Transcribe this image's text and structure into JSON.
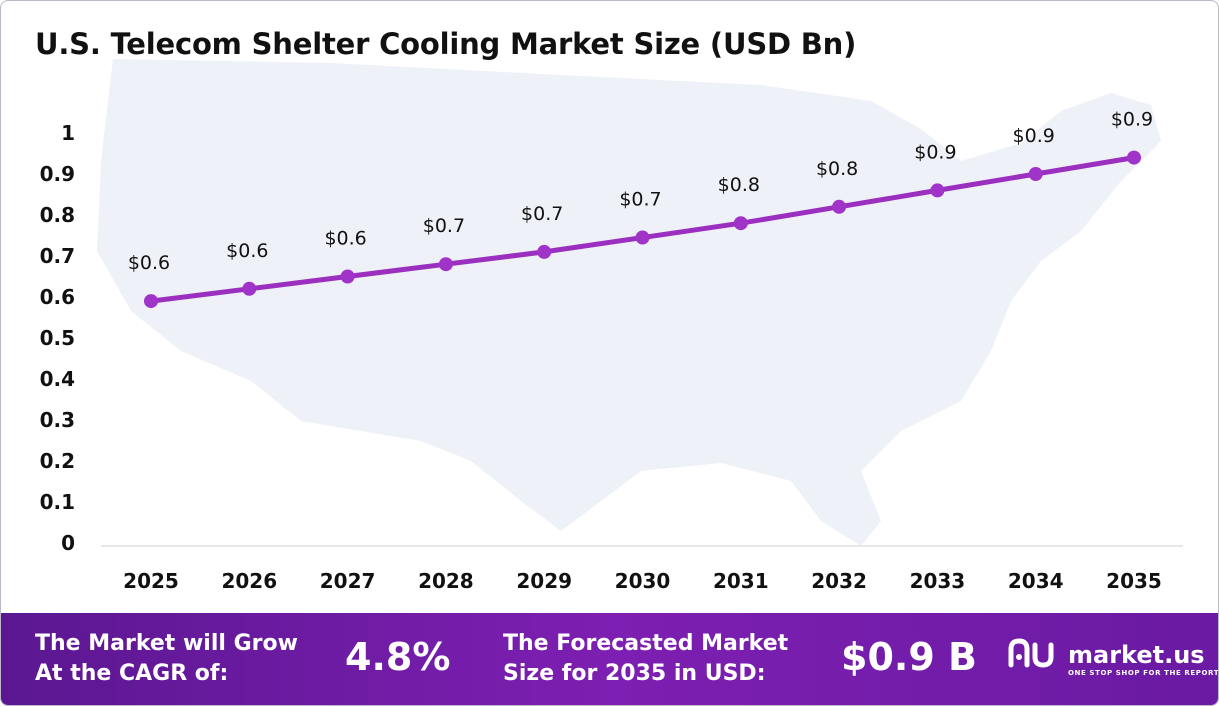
{
  "chart_data": {
    "type": "line",
    "title": "U.S. Telecom Shelter Cooling Market Size (USD Bn)",
    "categories": [
      "2025",
      "2026",
      "2027",
      "2028",
      "2029",
      "2030",
      "2031",
      "2032",
      "2033",
      "2034",
      "2035"
    ],
    "series": [
      {
        "values": [
          0.59,
          0.62,
          0.65,
          0.68,
          0.71,
          0.745,
          0.78,
          0.82,
          0.86,
          0.9,
          0.94
        ],
        "labels": [
          "$0.6",
          "$0.6",
          "$0.6",
          "$0.7",
          "$0.7",
          "$0.7",
          "$0.8",
          "$0.8",
          "$0.9",
          "$0.9",
          "$0.9"
        ]
      }
    ],
    "ylim": [
      0,
      1
    ],
    "yticks": [
      "0",
      "0.1",
      "0.2",
      "0.3",
      "0.4",
      "0.5",
      "0.6",
      "0.7",
      "0.8",
      "0.9",
      "1"
    ],
    "grid": false,
    "line_color": "#9b2fc0",
    "marker_color": "#a033c8"
  },
  "footer": {
    "cagr_label": "The Market will Grow\nAt the CAGR of:",
    "cagr_value": "4.8%",
    "forecast_label": "The Forecasted Market\nSize for 2035 in USD:",
    "forecast_value": "$0.9 B",
    "logo_icon": "market-us-logo-icon",
    "logo_text": "market.us",
    "logo_tagline": "ONE STOP SHOP FOR THE REPORTS"
  }
}
